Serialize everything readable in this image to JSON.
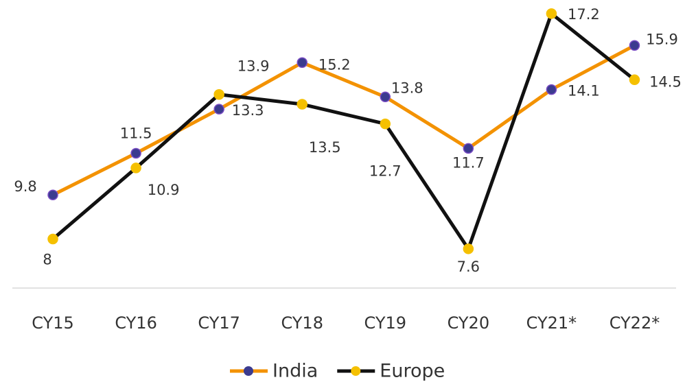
{
  "chart_data": {
    "type": "line",
    "categories": [
      "CY15",
      "CY16",
      "CY17",
      "CY18",
      "CY19",
      "CY20",
      "CY21*",
      "CY22*"
    ],
    "series": [
      {
        "name": "India",
        "color": "#f39200",
        "marker_color": "#3b3b8f",
        "values": [
          9.8,
          11.5,
          13.3,
          15.2,
          13.8,
          11.7,
          14.1,
          15.9
        ]
      },
      {
        "name": "Europe",
        "color": "#111111",
        "marker_color": "#f5c000",
        "values": [
          8,
          10.9,
          13.9,
          13.5,
          12.7,
          7.6,
          17.2,
          14.5
        ]
      }
    ],
    "ylim": [
      6,
      18
    ]
  }
}
